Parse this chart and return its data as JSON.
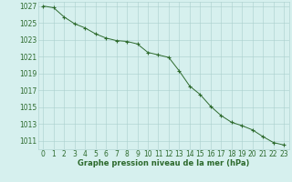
{
  "x": [
    0,
    1,
    2,
    3,
    4,
    5,
    6,
    7,
    8,
    9,
    10,
    11,
    12,
    13,
    14,
    15,
    16,
    17,
    18,
    19,
    20,
    21,
    22,
    23
  ],
  "y": [
    1027.0,
    1026.8,
    1025.7,
    1024.9,
    1024.4,
    1023.7,
    1023.2,
    1022.9,
    1022.8,
    1022.5,
    1021.5,
    1021.2,
    1020.9,
    1019.3,
    1017.5,
    1016.5,
    1015.1,
    1014.0,
    1013.2,
    1012.8,
    1012.3,
    1011.5,
    1010.8,
    1010.5
  ],
  "line_color": "#2d6a2d",
  "marker": "+",
  "marker_size": 3,
  "bg_color": "#d6f0ee",
  "grid_color": "#aacfcc",
  "xlabel": "Graphe pression niveau de la mer (hPa)",
  "xlabel_color": "#2d6a2d",
  "tick_color": "#2d6a2d",
  "ylim_min": 1010.0,
  "ylim_max": 1027.5,
  "xlim_min": -0.5,
  "xlim_max": 23.5,
  "yticks": [
    1011,
    1013,
    1015,
    1017,
    1019,
    1021,
    1023,
    1025,
    1027
  ],
  "xticks": [
    0,
    1,
    2,
    3,
    4,
    5,
    6,
    7,
    8,
    9,
    10,
    11,
    12,
    13,
    14,
    15,
    16,
    17,
    18,
    19,
    20,
    21,
    22,
    23
  ],
  "tick_fontsize": 5.5,
  "xlabel_fontsize": 6.0
}
